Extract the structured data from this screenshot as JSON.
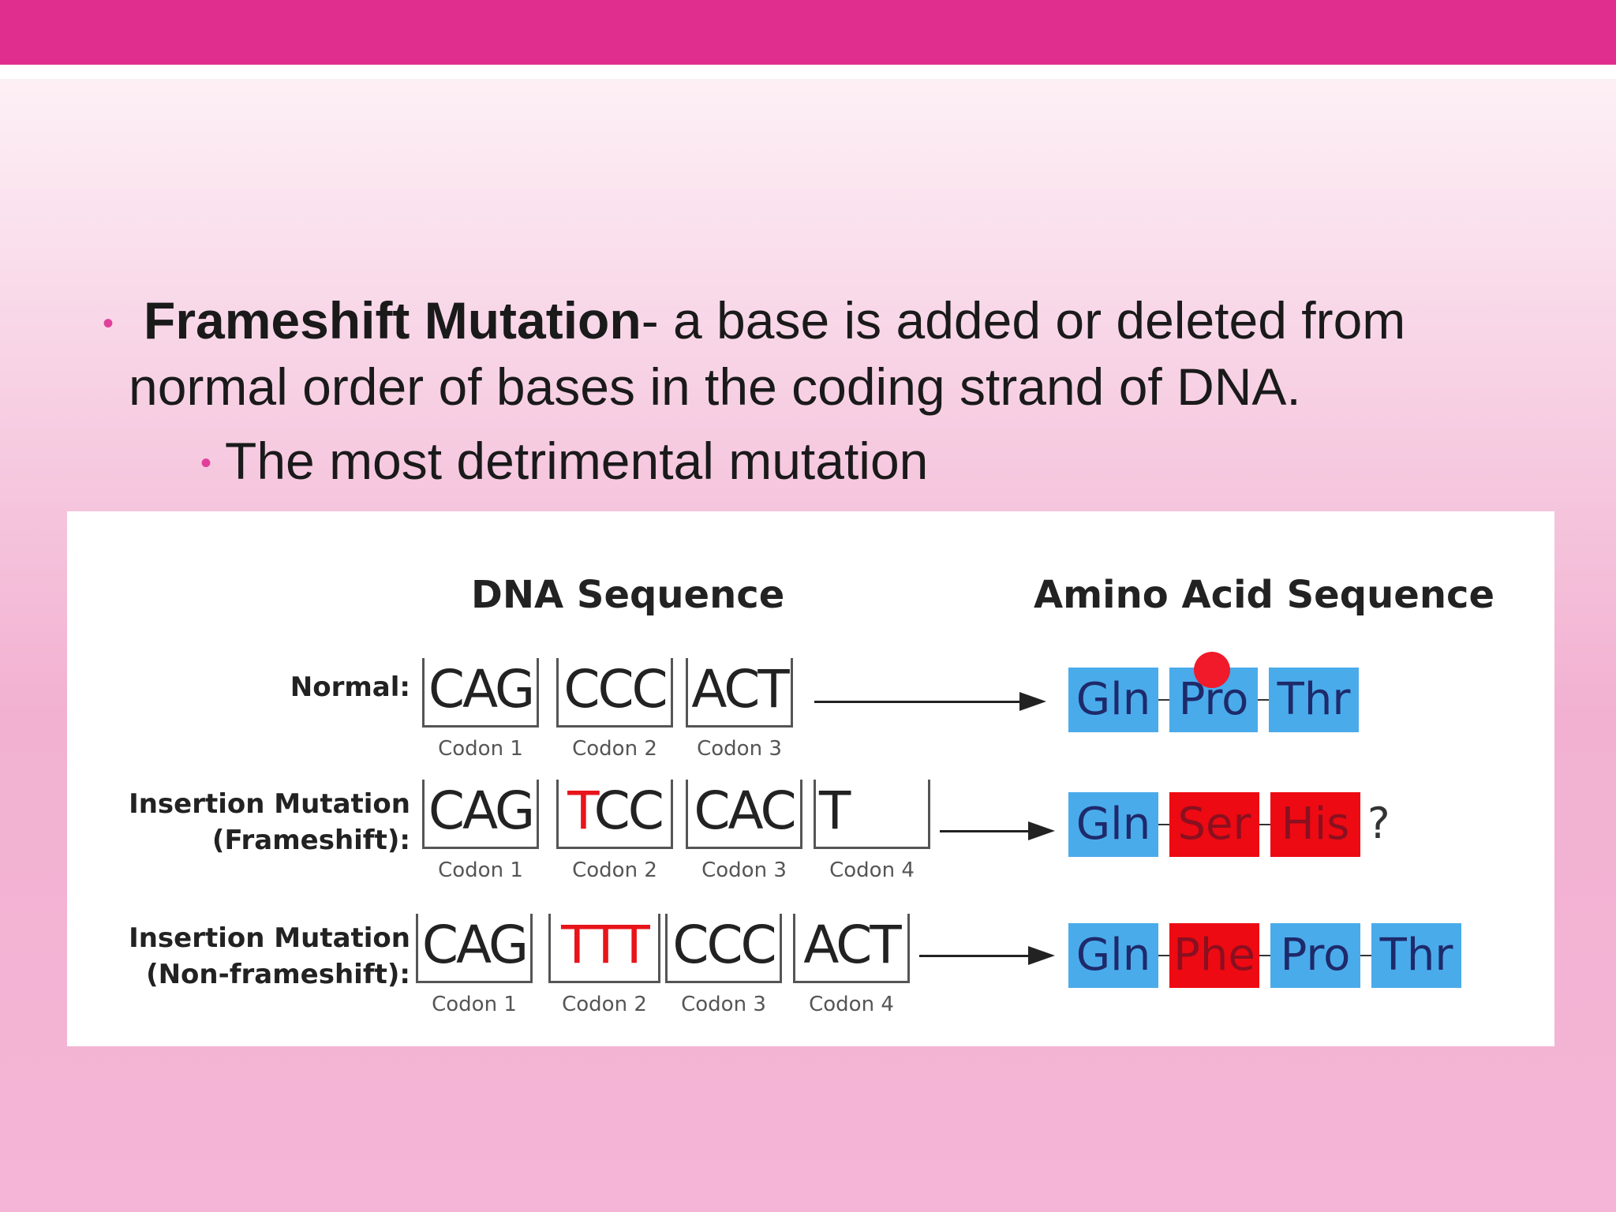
{
  "slide": {
    "bullet_term": "Frameshift Mutation",
    "bullet_rest_line1": "- a base is added or deleted from",
    "bullet_line2": "normal order of bases in the  coding strand of DNA.",
    "sub_bullet": "The most detrimental mutation"
  },
  "figure": {
    "dna_header": "DNA Sequence",
    "aa_header": "Amino Acid Sequence",
    "rows": [
      {
        "label_line1": "Normal:",
        "label_line2": "",
        "codons": [
          {
            "seq": "CAG",
            "label": "Codon 1"
          },
          {
            "seq": "CCC",
            "label": "Codon 2"
          },
          {
            "seq": "ACT",
            "label": "Codon 3"
          }
        ],
        "amino_acids": [
          {
            "name": "Gln",
            "color": "#4aabeb"
          },
          {
            "name": "Pro",
            "color": "#4aabeb"
          },
          {
            "name": "Thr",
            "color": "#4aabeb"
          }
        ]
      },
      {
        "label_line1": "Insertion Mutation",
        "label_line2": "(Frameshift):",
        "codons": [
          {
            "seq": "CAG",
            "label": "Codon 1"
          },
          {
            "seq": "TCC",
            "label": "Codon 2",
            "inserted": "T"
          },
          {
            "seq": "CAC",
            "label": "Codon 3"
          },
          {
            "seq": "T",
            "label": "Codon 4"
          }
        ],
        "amino_acids": [
          {
            "name": "Gln",
            "color": "#4aabeb"
          },
          {
            "name": "Ser",
            "color": "#ee0a12"
          },
          {
            "name": "His",
            "color": "#ee0a12"
          }
        ],
        "trailing": "?"
      },
      {
        "label_line1": "Insertion Mutation",
        "label_line2": "(Non-frameshift):",
        "codons": [
          {
            "seq": "CAG",
            "label": "Codon 1"
          },
          {
            "seq": "TTT",
            "label": "Codon 2",
            "inserted": "TTT"
          },
          {
            "seq": "CCC",
            "label": "Codon 3"
          },
          {
            "seq": "ACT",
            "label": "Codon 4"
          }
        ],
        "amino_acids": [
          {
            "name": "Gln",
            "color": "#4aabeb"
          },
          {
            "name": "Phe",
            "color": "#ee0a12"
          },
          {
            "name": "Pro",
            "color": "#4aabeb"
          },
          {
            "name": "Thr",
            "color": "#4aabeb"
          }
        ]
      }
    ]
  },
  "colors": {
    "top_bar": "#e02e8e",
    "bullet": "#e0409a",
    "mutation_red": "#e8141a",
    "aa_blue": "#4aabeb",
    "aa_red": "#ee0a12"
  }
}
